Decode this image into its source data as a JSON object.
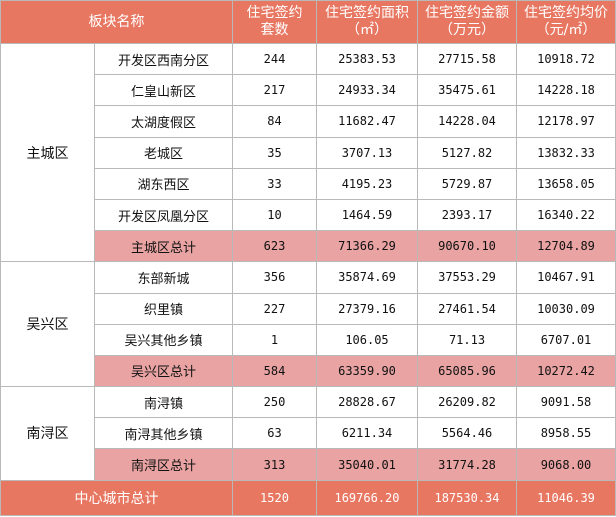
{
  "header": {
    "col_block": "板块名称",
    "col_sets_1": "住宅签约",
    "col_sets_2": "套数",
    "col_area_1": "住宅签约面积",
    "col_area_2": "（㎡）",
    "col_amount_1": "住宅签约金额",
    "col_amount_2": "（万元）",
    "col_price_1": "住宅签约均价",
    "col_price_2": "（元/㎡）"
  },
  "groups": [
    {
      "district": "主城区",
      "rows": [
        {
          "name": "开发区西南分区",
          "sets": "244",
          "area": "25383.53",
          "amount": "27715.58",
          "price": "10918.72"
        },
        {
          "name": "仁皇山新区",
          "sets": "217",
          "area": "24933.34",
          "amount": "35475.61",
          "price": "14228.18"
        },
        {
          "name": "太湖度假区",
          "sets": "84",
          "area": "11682.47",
          "amount": "14228.04",
          "price": "12178.97"
        },
        {
          "name": "老城区",
          "sets": "35",
          "area": "3707.13",
          "amount": "5127.82",
          "price": "13832.33"
        },
        {
          "name": "湖东西区",
          "sets": "33",
          "area": "4195.23",
          "amount": "5729.87",
          "price": "13658.05"
        },
        {
          "name": "开发区凤凰分区",
          "sets": "10",
          "area": "1464.59",
          "amount": "2393.17",
          "price": "16340.22"
        }
      ],
      "subtotal": {
        "name": "主城区总计",
        "sets": "623",
        "area": "71366.29",
        "amount": "90670.10",
        "price": "12704.89"
      }
    },
    {
      "district": "吴兴区",
      "rows": [
        {
          "name": "东部新城",
          "sets": "356",
          "area": "35874.69",
          "amount": "37553.29",
          "price": "10467.91"
        },
        {
          "name": "织里镇",
          "sets": "227",
          "area": "27379.16",
          "amount": "27461.54",
          "price": "10030.09"
        },
        {
          "name": "吴兴其他乡镇",
          "sets": "1",
          "area": "106.05",
          "amount": "71.13",
          "price": "6707.01"
        }
      ],
      "subtotal": {
        "name": "吴兴区总计",
        "sets": "584",
        "area": "63359.90",
        "amount": "65085.96",
        "price": "10272.42"
      }
    },
    {
      "district": "南浔区",
      "rows": [
        {
          "name": "南浔镇",
          "sets": "250",
          "area": "28828.67",
          "amount": "26209.82",
          "price": "9091.58"
        },
        {
          "name": "南浔其他乡镇",
          "sets": "63",
          "area": "6211.34",
          "amount": "5564.46",
          "price": "8958.55"
        }
      ],
      "subtotal": {
        "name": "南浔区总计",
        "sets": "313",
        "area": "35040.01",
        "amount": "31774.28",
        "price": "9068.00"
      }
    }
  ],
  "total": {
    "name": "中心城市总计",
    "sets": "1520",
    "area": "169766.20",
    "amount": "187530.34",
    "price": "11046.39"
  }
}
